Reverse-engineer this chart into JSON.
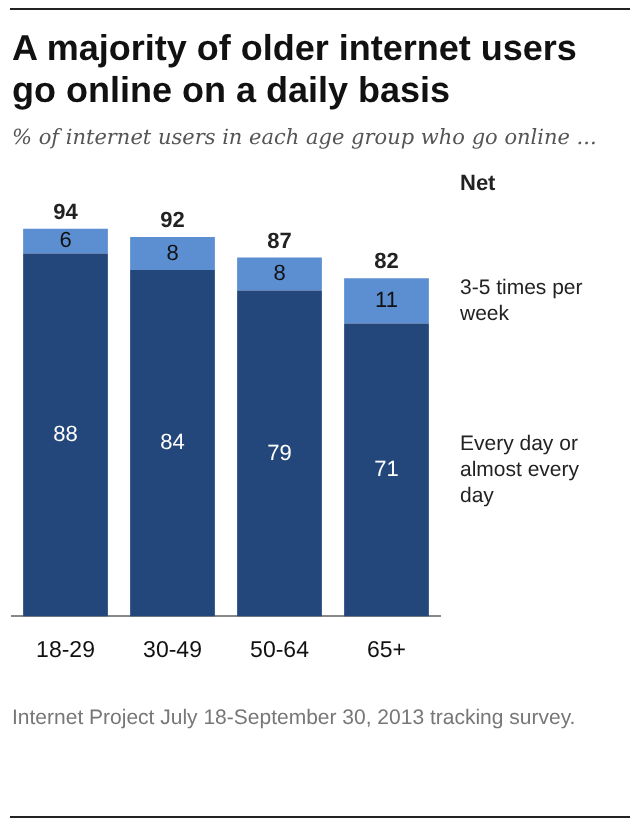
{
  "chart_data": {
    "type": "bar",
    "title": "A majority of older internet users go online on a daily basis",
    "subtitle": "% of internet users in each age group who go online ...",
    "categories": [
      "18-29",
      "30-49",
      "50-64",
      "65+"
    ],
    "stacked": true,
    "series": [
      {
        "name": "Every day or almost every day",
        "color": "#24477b",
        "values": [
          88,
          84,
          79,
          71
        ]
      },
      {
        "name": "3-5 times per week",
        "color": "#5b8fd1",
        "values": [
          6,
          8,
          8,
          11
        ]
      }
    ],
    "data_labels": true,
    "totals": [
      "94",
      "92",
      "87",
      "82"
    ],
    "legend_title": "Net",
    "grid": false,
    "legend": false,
    "annotations": [
      "Internet Project July 18-September 30, 2013 tracking survey."
    ]
  }
}
